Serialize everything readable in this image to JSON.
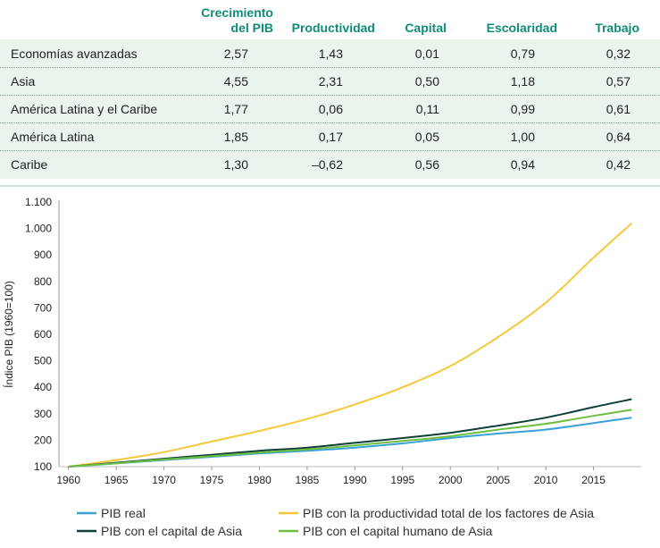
{
  "table": {
    "headers": {
      "growth_line1": "Crecimiento",
      "growth_line2": "del PIB",
      "productivity": "Productividad",
      "capital": "Capital",
      "schooling": "Escolaridad",
      "labor": "Trabajo"
    },
    "rows": [
      {
        "region": "Economías avanzadas",
        "growth": "2,57",
        "productivity": "1,43",
        "capital": "0,01",
        "schooling": "0,79",
        "labor": "0,32"
      },
      {
        "region": "Asia",
        "growth": "4,55",
        "productivity": "2,31",
        "capital": "0,50",
        "schooling": "1,18",
        "labor": "0,57"
      },
      {
        "region": "América Latina y el Caribe",
        "growth": "1,77",
        "productivity": "0,06",
        "capital": "0,11",
        "schooling": "0,99",
        "labor": "0,61"
      },
      {
        "region": "América Latina",
        "growth": "1,85",
        "productivity": "0,17",
        "capital": "0,05",
        "schooling": "1,00",
        "labor": "0,64"
      },
      {
        "region": "Caribe",
        "growth": "1,30",
        "productivity": "–0,62",
        "capital": "0,56",
        "schooling": "0,94",
        "labor": "0,42"
      }
    ]
  },
  "chart_data": {
    "type": "line",
    "title": "",
    "xlabel": "",
    "ylabel": "Índice PIB (1960=100)",
    "xlim": [
      1959,
      2020
    ],
    "ylim": [
      100,
      1100
    ],
    "x_ticks": [
      1960,
      1965,
      1970,
      1975,
      1980,
      1985,
      1990,
      1995,
      2000,
      2005,
      2010,
      2015
    ],
    "y_ticks": [
      100,
      200,
      300,
      400,
      500,
      600,
      700,
      800,
      900,
      1000,
      1100
    ],
    "y_tick_labels": [
      "100",
      "200",
      "300",
      "400",
      "500",
      "600",
      "700",
      "800",
      "900",
      "1.000",
      "1.100"
    ],
    "x": [
      1960,
      1965,
      1970,
      1975,
      1980,
      1985,
      1990,
      1995,
      2000,
      2005,
      2010,
      2015,
      2019
    ],
    "series": [
      {
        "name": "PIB real",
        "color": "#3aa0d8",
        "values": [
          100,
          112,
          125,
          137,
          150,
          160,
          172,
          188,
          208,
          225,
          240,
          265,
          285
        ]
      },
      {
        "name": "PIB con la productividad total de los factores de Asia",
        "color": "#f5c83a",
        "values": [
          100,
          125,
          155,
          195,
          235,
          280,
          335,
          400,
          480,
          590,
          720,
          890,
          1020
        ]
      },
      {
        "name": "PIB con el capital de Asia",
        "color": "#0f3f3a",
        "values": [
          100,
          115,
          130,
          145,
          160,
          172,
          190,
          208,
          228,
          255,
          285,
          325,
          355
        ]
      },
      {
        "name": "PIB con el capital humano de Asia",
        "color": "#6cbf3f",
        "values": [
          100,
          113,
          127,
          140,
          153,
          165,
          180,
          197,
          215,
          240,
          262,
          292,
          315
        ]
      }
    ],
    "legend": {
      "placement": "bottom",
      "labels": [
        "PIB real",
        "PIB con la productividad total de los factores de Asia",
        "PIB con el capital de Asia",
        "PIB con el capital humano de Asia"
      ]
    }
  }
}
